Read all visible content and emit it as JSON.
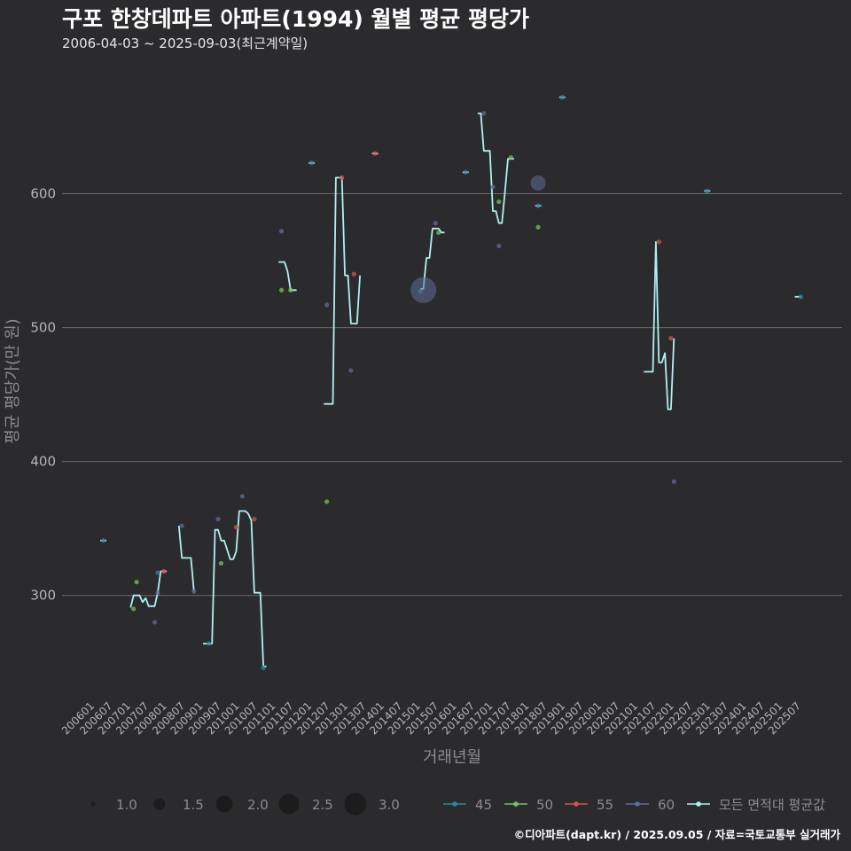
{
  "header": {
    "title": "구포 한창데파트 아파트(1994) 월별 평균 평당가",
    "subtitle": "2006-04-03 ~ 2025-09-03(최근계약일)"
  },
  "caption": "©디아파트(dapt.kr) / 2025.09.05 / 자료=국토교통부 실거래가",
  "chart_data": {
    "type": "line",
    "title": "구포 한창데파트 아파트(1994) 월별 평균 평당가",
    "xlabel": "거래년월",
    "ylabel": "평균 평당가(만 원)",
    "ylim": [
      225,
      695
    ],
    "yticks": [
      300,
      400,
      500,
      600
    ],
    "grid": "horizontal",
    "legend_position": "bottom",
    "x_start": "2006-01",
    "x_end": "2025-12",
    "x_tick_labels": [
      "200601",
      "200607",
      "200701",
      "200707",
      "200801",
      "200807",
      "200901",
      "200907",
      "201001",
      "201007",
      "201101",
      "201107",
      "201201",
      "201207",
      "201301",
      "201307",
      "201401",
      "201407",
      "201501",
      "201507",
      "201601",
      "201607",
      "201701",
      "201707",
      "201801",
      "201807",
      "201901",
      "201907",
      "202001",
      "202007",
      "202101",
      "202107",
      "202201",
      "202207",
      "202301",
      "202307",
      "202401",
      "202407",
      "202501",
      "202507"
    ],
    "size_legend": {
      "values": [
        "1.0",
        "1.5",
        "2.0",
        "2.5",
        "3.0"
      ]
    },
    "colors": {
      "45": "#2a8a9a",
      "50": "#78c060",
      "55": "#d65050",
      "60": "#5d6e96",
      "avg": "#aef0ee"
    },
    "series": [
      {
        "name": "모든 면적대 평균값",
        "key": "avg",
        "segments": [
          [
            [
              "2006-04",
              341
            ],
            [
              "2006-05",
              341
            ],
            [
              "2006-06",
              341
            ]
          ],
          [
            [
              "2007-02",
              291
            ],
            [
              "2007-03",
              300
            ],
            [
              "2007-04",
              300
            ],
            [
              "2007-05",
              300
            ],
            [
              "2007-06",
              295
            ],
            [
              "2007-07",
              298
            ],
            [
              "2007-08",
              292
            ],
            [
              "2007-09",
              292
            ],
            [
              "2007-10",
              292
            ],
            [
              "2007-11",
              302
            ],
            [
              "2007-12",
              318
            ],
            [
              "2008-01",
              318
            ],
            [
              "2008-02",
              318
            ]
          ],
          [
            [
              "2008-06",
              352
            ],
            [
              "2008-07",
              328
            ],
            [
              "2008-08",
              328
            ],
            [
              "2008-09",
              328
            ],
            [
              "2008-10",
              328
            ],
            [
              "2008-11",
              303
            ]
          ],
          [
            [
              "2009-02",
              264
            ],
            [
              "2009-03",
              264
            ],
            [
              "2009-04",
              264
            ],
            [
              "2009-05",
              264
            ],
            [
              "2009-06",
              349
            ],
            [
              "2009-07",
              349
            ],
            [
              "2009-08",
              341
            ],
            [
              "2009-09",
              341
            ],
            [
              "2009-10",
              334
            ],
            [
              "2009-11",
              327
            ],
            [
              "2009-12",
              327
            ],
            [
              "2010-01",
              333
            ],
            [
              "2010-02",
              363
            ],
            [
              "2010-03",
              363
            ],
            [
              "2010-04",
              363
            ],
            [
              "2010-05",
              361
            ],
            [
              "2010-06",
              356
            ],
            [
              "2010-07",
              302
            ],
            [
              "2010-08",
              302
            ],
            [
              "2010-09",
              302
            ],
            [
              "2010-10",
              247
            ],
            [
              "2010-11",
              247
            ]
          ],
          [
            [
              "2011-03",
              549
            ],
            [
              "2011-04",
              549
            ],
            [
              "2011-05",
              549
            ],
            [
              "2011-06",
              542
            ],
            [
              "2011-07",
              528
            ],
            [
              "2011-08",
              528
            ],
            [
              "2011-09",
              528
            ]
          ],
          [
            [
              "2012-01",
              623
            ],
            [
              "2012-02",
              623
            ],
            [
              "2012-03",
              623
            ]
          ],
          [
            [
              "2012-06",
              443
            ],
            [
              "2012-07",
              443
            ],
            [
              "2012-08",
              443
            ],
            [
              "2012-09",
              443
            ],
            [
              "2012-10",
              612
            ],
            [
              "2012-11",
              612
            ],
            [
              "2012-12",
              612
            ],
            [
              "2013-01",
              539
            ],
            [
              "2013-02",
              539
            ],
            [
              "2013-03",
              503
            ],
            [
              "2013-04",
              503
            ],
            [
              "2013-05",
              503
            ],
            [
              "2013-06",
              539
            ]
          ],
          [
            [
              "2013-10",
              630
            ],
            [
              "2013-11",
              630
            ],
            [
              "2013-12",
              630
            ]
          ],
          [
            [
              "2015-02",
              529
            ],
            [
              "2015-03",
              529
            ],
            [
              "2015-04",
              552
            ],
            [
              "2015-05",
              552
            ],
            [
              "2015-06",
              574
            ],
            [
              "2015-07",
              574
            ],
            [
              "2015-08",
              574
            ],
            [
              "2015-09",
              571
            ],
            [
              "2015-10",
              571
            ]
          ],
          [
            [
              "2016-04",
              616
            ],
            [
              "2016-05",
              616
            ],
            [
              "2016-06",
              616
            ]
          ],
          [
            [
              "2016-09",
              660
            ],
            [
              "2016-10",
              660
            ],
            [
              "2016-11",
              632
            ],
            [
              "2016-12",
              632
            ],
            [
              "2017-01",
              632
            ],
            [
              "2017-02",
              587
            ],
            [
              "2017-03",
              587
            ],
            [
              "2017-04",
              578
            ],
            [
              "2017-05",
              578
            ],
            [
              "2017-06",
              601
            ],
            [
              "2017-07",
              626
            ],
            [
              "2017-08",
              626
            ],
            [
              "2017-09",
              626
            ]
          ],
          [
            [
              "2018-04",
              591
            ],
            [
              "2018-05",
              591
            ],
            [
              "2018-06",
              591
            ]
          ],
          [
            [
              "2018-12",
              672
            ],
            [
              "2019-01",
              672
            ],
            [
              "2019-02",
              672
            ]
          ],
          [
            [
              "2021-04",
              467
            ],
            [
              "2021-05",
              467
            ],
            [
              "2021-06",
              467
            ],
            [
              "2021-07",
              467
            ],
            [
              "2021-08",
              564
            ],
            [
              "2021-09",
              474
            ],
            [
              "2021-10",
              474
            ],
            [
              "2021-11",
              481
            ],
            [
              "2021-12",
              439
            ],
            [
              "2022-01",
              439
            ],
            [
              "2022-02",
              492
            ]
          ],
          [
            [
              "2022-12",
              602
            ],
            [
              "2023-01",
              602
            ],
            [
              "2023-02",
              602
            ]
          ],
          [
            [
              "2025-06",
              523
            ],
            [
              "2025-07",
              523
            ],
            [
              "2025-08",
              523
            ]
          ]
        ]
      },
      {
        "name": "45",
        "key": "45",
        "points": [
          [
            "2006-05",
            341,
            1.0
          ],
          [
            "2007-11",
            317,
            1.0
          ],
          [
            "2009-04",
            264,
            1.0
          ],
          [
            "2010-10",
            246,
            1.0
          ],
          [
            "2012-02",
            623,
            1.0
          ],
          [
            "2015-02",
            527,
            1.0
          ],
          [
            "2016-05",
            616,
            1.0
          ],
          [
            "2018-05",
            591,
            1.0
          ],
          [
            "2019-01",
            672,
            1.0
          ],
          [
            "2023-01",
            602,
            1.0
          ],
          [
            "2025-08",
            523,
            1.0
          ]
        ]
      },
      {
        "name": "50",
        "key": "50",
        "points": [
          [
            "2007-03",
            290,
            1.0
          ],
          [
            "2007-04",
            310,
            1.0
          ],
          [
            "2009-08",
            324,
            1.0
          ],
          [
            "2011-04",
            528,
            1.0
          ],
          [
            "2011-07",
            528,
            1.0
          ],
          [
            "2012-07",
            370,
            1.0
          ],
          [
            "2015-08",
            571,
            1.0
          ],
          [
            "2017-04",
            594,
            1.0
          ],
          [
            "2017-08",
            627,
            1.0
          ],
          [
            "2018-05",
            575,
            1.0
          ]
        ]
      },
      {
        "name": "55",
        "key": "55",
        "points": [
          [
            "2008-01",
            318,
            1.0
          ],
          [
            "2010-01",
            351,
            1.0
          ],
          [
            "2010-07",
            357,
            1.0
          ],
          [
            "2012-12",
            612,
            1.0
          ],
          [
            "2013-04",
            540,
            1.0
          ],
          [
            "2013-11",
            630,
            1.0
          ],
          [
            "2021-09",
            564,
            1.0
          ],
          [
            "2022-01",
            492,
            1.0
          ]
        ]
      },
      {
        "name": "60",
        "key": "60",
        "points": [
          [
            "2007-10",
            280,
            1.0
          ],
          [
            "2007-11",
            302,
            1.0
          ],
          [
            "2008-07",
            352,
            1.0
          ],
          [
            "2008-11",
            303,
            1.0
          ],
          [
            "2009-07",
            357,
            1.0
          ],
          [
            "2010-03",
            374,
            1.0
          ],
          [
            "2011-04",
            572,
            1.0
          ],
          [
            "2012-07",
            517,
            1.0
          ],
          [
            "2013-03",
            468,
            1.0
          ],
          [
            "2015-03",
            528,
            3.0
          ],
          [
            "2015-07",
            578,
            1.0
          ],
          [
            "2016-11",
            660,
            1.0
          ],
          [
            "2017-02",
            605,
            1.0
          ],
          [
            "2017-04",
            561,
            1.0
          ],
          [
            "2018-05",
            608,
            2.0
          ],
          [
            "2022-02",
            385,
            1.0
          ]
        ]
      }
    ]
  }
}
